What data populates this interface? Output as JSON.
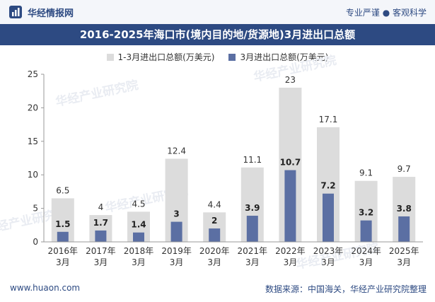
{
  "header": {
    "brand": "华经情报网",
    "slogan": "专业严谨 ● 客观科学"
  },
  "footer": {
    "website": "www.huaon.com",
    "source": "数据来源：中国海关，华经产业研究院整理"
  },
  "watermark": "华经产业研究院",
  "colors": {
    "title_band": "#2d4a82",
    "series_total": "#dcdcdc",
    "series_month": "#5b6fa3"
  },
  "chart_data": {
    "type": "bar",
    "title": "2016-2025年海口市(境内目的地/货源地)3月进出口总额",
    "categories": [
      "2016年3月",
      "2017年3月",
      "2018年3月",
      "2019年3月",
      "2020年3月",
      "2021年3月",
      "2022年3月",
      "2023年3月",
      "2024年3月",
      "2025年3月"
    ],
    "series": [
      {
        "name": "1-3月进出口总额(万美元)",
        "values": [
          6.5,
          4,
          4.5,
          12.4,
          4.4,
          11.1,
          23,
          17.1,
          9.1,
          9.7
        ]
      },
      {
        "name": "3月进出口总额(万美元)",
        "values": [
          1.5,
          1.7,
          1.4,
          3,
          2,
          3.9,
          10.7,
          7.2,
          3.2,
          3.8
        ]
      }
    ],
    "ylim": [
      0,
      25
    ],
    "yticks": [
      0,
      5,
      10,
      15,
      20,
      25
    ],
    "legend_position": "top-center",
    "grid": false
  }
}
